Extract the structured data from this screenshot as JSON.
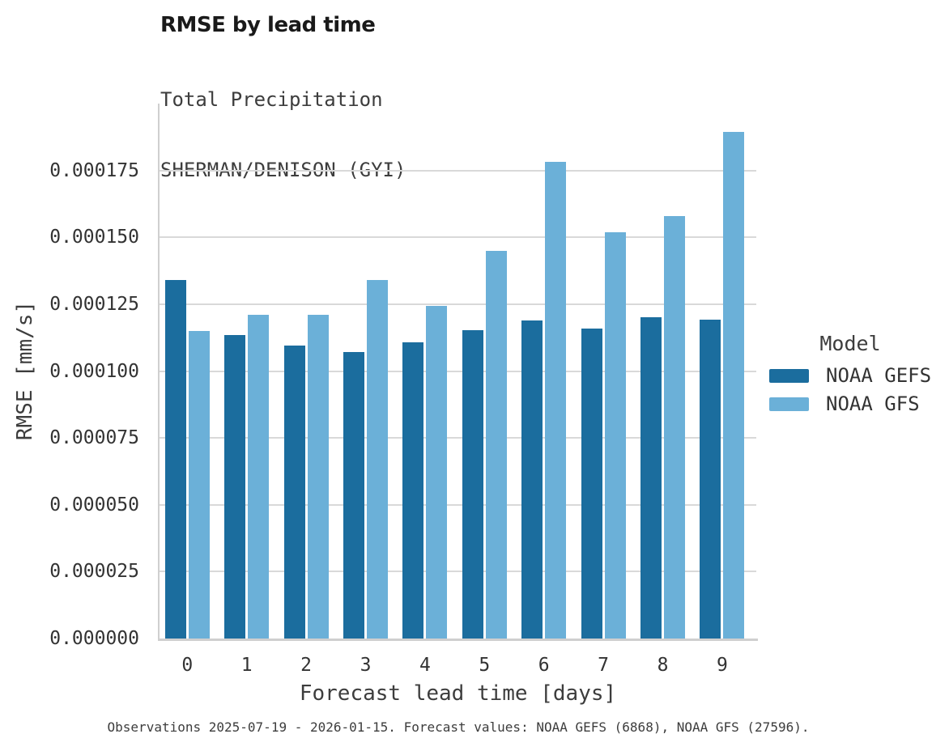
{
  "title": "RMSE by lead time",
  "subtitle_lines": [
    "Total Precipitation",
    "SHERMAN/DENISON (GYI)"
  ],
  "caption": "Observations 2025-07-19 - 2026-01-15. Forecast values: NOAA GEFS (6868), NOAA GFS (27596).",
  "legend": {
    "title": "Model",
    "items": [
      {
        "label": "NOAA GEFS",
        "color": "#1b6d9e"
      },
      {
        "label": "NOAA GFS",
        "color": "#6bb0d8"
      }
    ]
  },
  "colors": {
    "gefs_bar": "#1b6d9e",
    "gfs_bar": "#6bb0d8",
    "gridline": "#d9d9d9",
    "axis_line": "#cfcfcf"
  },
  "chart_data": {
    "type": "bar",
    "title": "RMSE by lead time",
    "subtitle": "Total Precipitation, SHERMAN/DENISON (GYI)",
    "xlabel": "Forecast lead time [days]",
    "ylabel": "RMSE [mm/s]",
    "categories": [
      "0",
      "1",
      "2",
      "3",
      "4",
      "5",
      "6",
      "7",
      "8",
      "9"
    ],
    "series": [
      {
        "name": "NOAA GEFS",
        "color": "#1b6d9e",
        "values": [
          0.000134,
          0.0001135,
          0.0001095,
          0.0001072,
          0.0001108,
          0.0001152,
          0.0001188,
          0.0001158,
          0.00012,
          0.0001192
        ]
      },
      {
        "name": "NOAA GFS",
        "color": "#6bb0d8",
        "values": [
          0.000115,
          0.000121,
          0.000121,
          0.000134,
          0.0001245,
          0.0001448,
          0.0001782,
          0.000152,
          0.000158,
          0.0001895
        ]
      }
    ],
    "ylim": [
      0,
      0.0002
    ],
    "yticks": [
      {
        "value": 0.0,
        "label": "0.000000"
      },
      {
        "value": 2.5e-05,
        "label": "0.000025"
      },
      {
        "value": 5e-05,
        "label": "0.000050"
      },
      {
        "value": 7.5e-05,
        "label": "0.000075"
      },
      {
        "value": 0.0001,
        "label": "0.000100"
      },
      {
        "value": 0.000125,
        "label": "0.000125"
      },
      {
        "value": 0.00015,
        "label": "0.000150"
      },
      {
        "value": 0.000175,
        "label": "0.000175"
      }
    ],
    "grid": "horizontal",
    "legend_position": "right",
    "legend_title": "Model"
  }
}
